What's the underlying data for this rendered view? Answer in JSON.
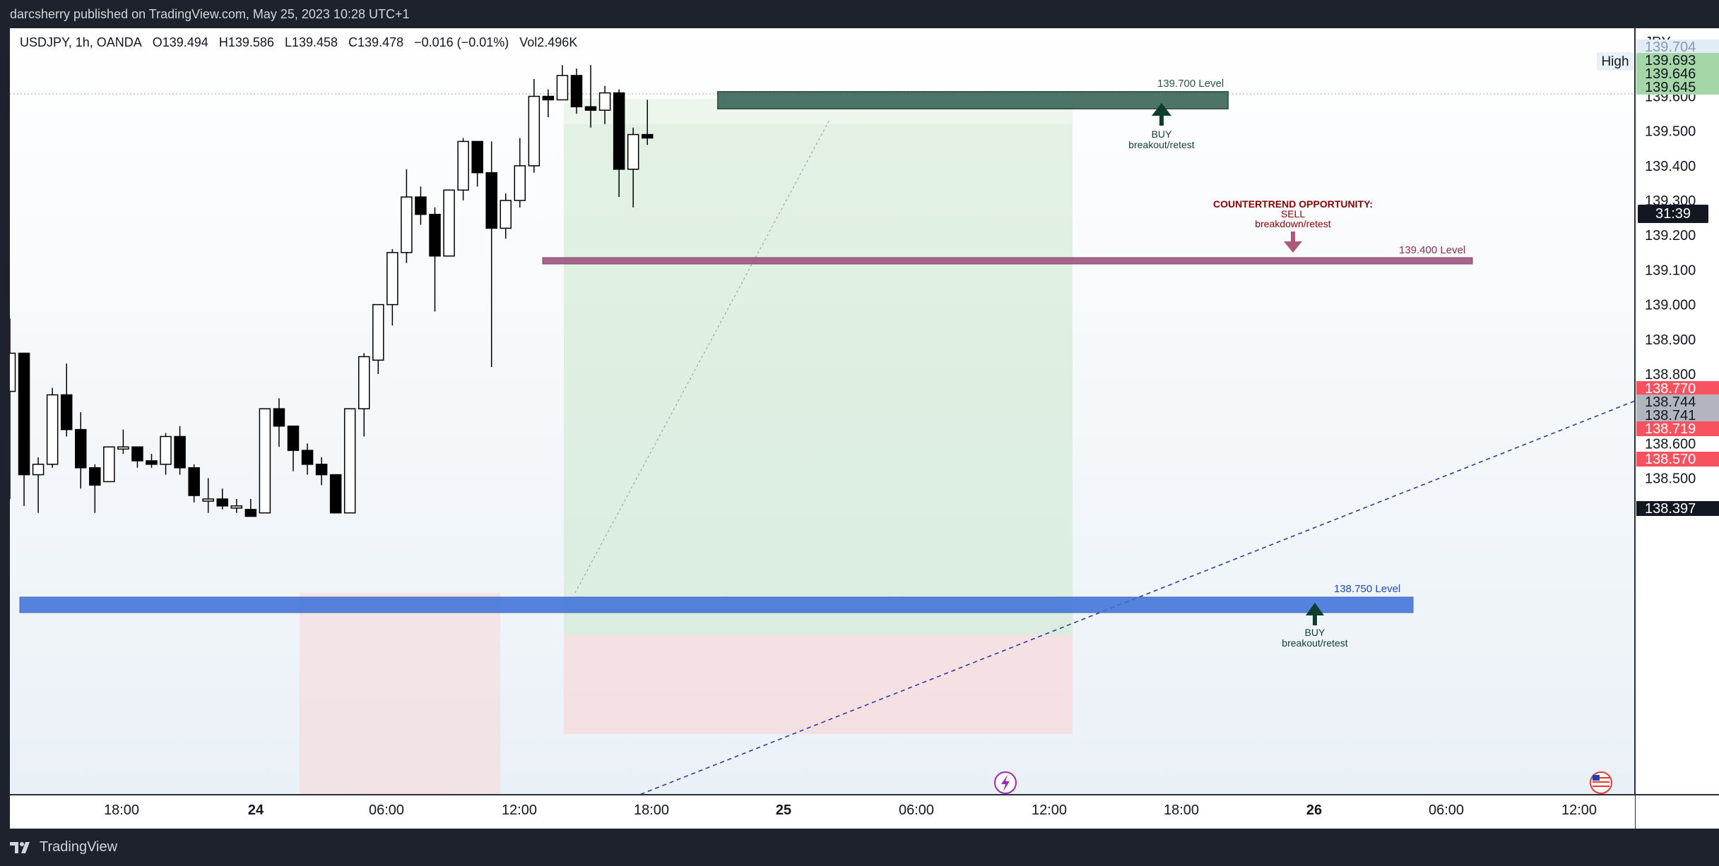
{
  "header": {
    "published_text": "darcsherry published on TradingView.com, May 25, 2023 10:28 UTC+1"
  },
  "legend": {
    "symbol": "USDJPY, 1h, OANDA",
    "open": "O139.494",
    "high": "H139.586",
    "low": "L139.458",
    "close": "C139.478",
    "change": "−0.016 (−0.01%)",
    "volume": "Vol2.496K"
  },
  "price_axis": {
    "currency": "JPY",
    "high_label": "High",
    "timer": "31:39",
    "tags": [
      {
        "value": 139.704,
        "text": "139.704",
        "bg": "#e1ecf7",
        "fg": "#8a9bb0"
      },
      {
        "value": 139.693,
        "text": "139.693",
        "bg": "#a5d6a7",
        "fg": "#131722"
      },
      {
        "value": 139.646,
        "text": "139.646",
        "bg": "#a5d6a7",
        "fg": "#131722"
      },
      {
        "value": 139.645,
        "text": "139.645",
        "bg": "#a5d6a7",
        "fg": "#131722"
      },
      {
        "value": 138.77,
        "text": "138.770",
        "bg": "#f7525f",
        "fg": "#ffffff"
      },
      {
        "value": 138.744,
        "text": "138.744",
        "bg": "#b2b5be",
        "fg": "#131722"
      },
      {
        "value": 138.741,
        "text": "138.741",
        "bg": "#b2b5be",
        "fg": "#131722"
      },
      {
        "value": 138.719,
        "text": "138.719",
        "bg": "#f7525f",
        "fg": "#ffffff"
      },
      {
        "value": 138.57,
        "text": "138.570",
        "bg": "#f7525f",
        "fg": "#ffffff"
      },
      {
        "value": 138.397,
        "text": "138.397",
        "bg": "#131722",
        "fg": "#ffffff"
      }
    ]
  },
  "annotations": {
    "level_top": "139.700 Level",
    "level_mid": "139.400 Level",
    "level_low": "138.750 Level",
    "buy_top_1": "BUY",
    "buy_top_2": "breakout/retest",
    "counter_1": "COUNTERTREND OPPORTUNITY:",
    "counter_2": "SELL",
    "counter_3": "breakdown/retest",
    "buy_low_1": "BUY",
    "buy_low_2": "breakout/retest"
  },
  "footer": {
    "brand": "TradingView"
  },
  "colors": {
    "bull_fill": "#ffffff",
    "bear_fill": "#000000",
    "zone_top": "#2e5e4e",
    "zone_mid": "#9c4a7a",
    "zone_low": "#3a6fd8",
    "profit_zone": "#c8e6c9",
    "loss_zone": "#f8d7da",
    "trend_line": "#2a3ea0",
    "annotation_red": "#8b0000"
  },
  "chart_data": {
    "type": "candlestick",
    "symbol": "USDJPY",
    "interval": "1h",
    "y_ticks": [
      138.5,
      138.6,
      138.8,
      138.9,
      139.0,
      139.1,
      139.2,
      139.3,
      139.4,
      139.5,
      139.6
    ],
    "y_tick_labels": [
      "138.500",
      "138.600",
      "138.800",
      "138.900",
      "139.000",
      "139.100",
      "139.200",
      "139.300",
      "139.400",
      "139.500",
      "139.600"
    ],
    "x_tick_labels": [
      "18:00",
      "24",
      "06:00",
      "12:00",
      "18:00",
      "25",
      "06:00",
      "12:00",
      "18:00",
      "26",
      "06:00",
      "12:00"
    ],
    "x_tick_bold": [
      false,
      true,
      false,
      false,
      false,
      true,
      false,
      false,
      false,
      true,
      false,
      false
    ],
    "levels": [
      139.7,
      139.4,
      138.75
    ],
    "candles": [
      {
        "o": 138.75,
        "h": 138.96,
        "l": 138.44,
        "c": 138.86
      },
      {
        "o": 138.86,
        "h": 138.86,
        "l": 138.42,
        "c": 138.51
      },
      {
        "o": 138.51,
        "h": 138.56,
        "l": 138.4,
        "c": 138.54
      },
      {
        "o": 138.54,
        "h": 138.76,
        "l": 138.53,
        "c": 138.74
      },
      {
        "o": 138.74,
        "h": 138.83,
        "l": 138.62,
        "c": 138.64
      },
      {
        "o": 138.64,
        "h": 138.69,
        "l": 138.47,
        "c": 138.53
      },
      {
        "o": 138.53,
        "h": 138.54,
        "l": 138.4,
        "c": 138.48
      },
      {
        "o": 138.49,
        "h": 138.59,
        "l": 138.49,
        "c": 138.59
      },
      {
        "o": 138.59,
        "h": 138.64,
        "l": 138.57,
        "c": 138.59
      },
      {
        "o": 138.59,
        "h": 138.59,
        "l": 138.53,
        "c": 138.55
      },
      {
        "o": 138.55,
        "h": 138.57,
        "l": 138.53,
        "c": 138.54
      },
      {
        "o": 138.54,
        "h": 138.63,
        "l": 138.51,
        "c": 138.62
      },
      {
        "o": 138.62,
        "h": 138.65,
        "l": 138.51,
        "c": 138.53
      },
      {
        "o": 138.53,
        "h": 138.54,
        "l": 138.43,
        "c": 138.45
      },
      {
        "o": 138.44,
        "h": 138.5,
        "l": 138.4,
        "c": 138.44
      },
      {
        "o": 138.44,
        "h": 138.47,
        "l": 138.41,
        "c": 138.42
      },
      {
        "o": 138.42,
        "h": 138.44,
        "l": 138.4,
        "c": 138.42
      },
      {
        "o": 138.41,
        "h": 138.44,
        "l": 138.4,
        "c": 138.39
      },
      {
        "o": 138.4,
        "h": 138.7,
        "l": 138.4,
        "c": 138.7
      },
      {
        "o": 138.7,
        "h": 138.73,
        "l": 138.59,
        "c": 138.65
      },
      {
        "o": 138.65,
        "h": 138.65,
        "l": 138.52,
        "c": 138.58
      },
      {
        "o": 138.58,
        "h": 138.6,
        "l": 138.51,
        "c": 138.54
      },
      {
        "o": 138.54,
        "h": 138.56,
        "l": 138.48,
        "c": 138.51
      },
      {
        "o": 138.51,
        "h": 138.51,
        "l": 138.4,
        "c": 138.4
      },
      {
        "o": 138.4,
        "h": 138.7,
        "l": 138.4,
        "c": 138.7
      },
      {
        "o": 138.7,
        "h": 138.86,
        "l": 138.62,
        "c": 138.85
      },
      {
        "o": 138.84,
        "h": 139.0,
        "l": 138.8,
        "c": 139.0
      },
      {
        "o": 139.0,
        "h": 139.16,
        "l": 138.94,
        "c": 139.15
      },
      {
        "o": 139.15,
        "h": 139.39,
        "l": 139.12,
        "c": 139.31
      },
      {
        "o": 139.31,
        "h": 139.34,
        "l": 139.23,
        "c": 139.26
      },
      {
        "o": 139.26,
        "h": 139.28,
        "l": 138.98,
        "c": 139.14
      },
      {
        "o": 139.14,
        "h": 139.33,
        "l": 139.14,
        "c": 139.33
      },
      {
        "o": 139.33,
        "h": 139.48,
        "l": 139.3,
        "c": 139.47
      },
      {
        "o": 139.47,
        "h": 139.47,
        "l": 139.34,
        "c": 139.38
      },
      {
        "o": 139.38,
        "h": 139.47,
        "l": 138.82,
        "c": 139.22
      },
      {
        "o": 139.22,
        "h": 139.32,
        "l": 139.19,
        "c": 139.3
      },
      {
        "o": 139.3,
        "h": 139.48,
        "l": 139.28,
        "c": 139.4
      },
      {
        "o": 139.4,
        "h": 139.65,
        "l": 139.38,
        "c": 139.6
      },
      {
        "o": 139.6,
        "h": 139.62,
        "l": 139.54,
        "c": 139.59
      },
      {
        "o": 139.59,
        "h": 139.69,
        "l": 139.59,
        "c": 139.66
      },
      {
        "o": 139.66,
        "h": 139.68,
        "l": 139.55,
        "c": 139.57
      },
      {
        "o": 139.57,
        "h": 139.69,
        "l": 139.51,
        "c": 139.56
      },
      {
        "o": 139.56,
        "h": 139.63,
        "l": 139.52,
        "c": 139.61
      },
      {
        "o": 139.61,
        "h": 139.62,
        "l": 139.31,
        "c": 139.39
      },
      {
        "o": 139.39,
        "h": 139.51,
        "l": 139.28,
        "c": 139.49
      },
      {
        "o": 139.49,
        "h": 139.59,
        "l": 139.46,
        "c": 139.48
      }
    ]
  }
}
